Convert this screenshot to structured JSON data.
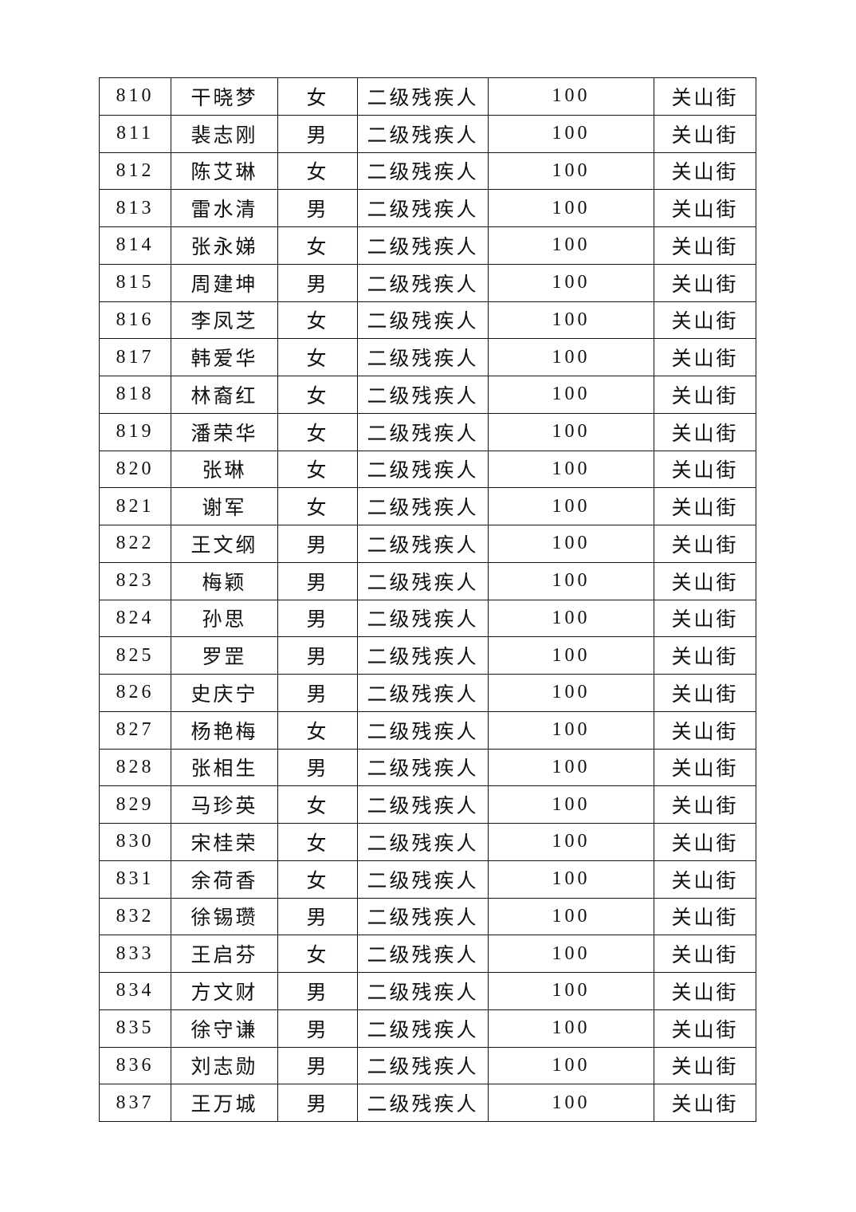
{
  "table": {
    "rows": [
      {
        "no": "810",
        "name": "干晓梦",
        "gender": "女",
        "level": "二级残疾人",
        "amount": "100",
        "street": "关山街"
      },
      {
        "no": "811",
        "name": "裴志刚",
        "gender": "男",
        "level": "二级残疾人",
        "amount": "100",
        "street": "关山街"
      },
      {
        "no": "812",
        "name": "陈艾琳",
        "gender": "女",
        "level": "二级残疾人",
        "amount": "100",
        "street": "关山街"
      },
      {
        "no": "813",
        "name": "雷水清",
        "gender": "男",
        "level": "二级残疾人",
        "amount": "100",
        "street": "关山街"
      },
      {
        "no": "814",
        "name": "张永娣",
        "gender": "女",
        "level": "二级残疾人",
        "amount": "100",
        "street": "关山街"
      },
      {
        "no": "815",
        "name": "周建坤",
        "gender": "男",
        "level": "二级残疾人",
        "amount": "100",
        "street": "关山街"
      },
      {
        "no": "816",
        "name": "李凤芝",
        "gender": "女",
        "level": "二级残疾人",
        "amount": "100",
        "street": "关山街"
      },
      {
        "no": "817",
        "name": "韩爱华",
        "gender": "女",
        "level": "二级残疾人",
        "amount": "100",
        "street": "关山街"
      },
      {
        "no": "818",
        "name": "林裔红",
        "gender": "女",
        "level": "二级残疾人",
        "amount": "100",
        "street": "关山街"
      },
      {
        "no": "819",
        "name": "潘荣华",
        "gender": "女",
        "level": "二级残疾人",
        "amount": "100",
        "street": "关山街"
      },
      {
        "no": "820",
        "name": "张琳",
        "gender": "女",
        "level": "二级残疾人",
        "amount": "100",
        "street": "关山街"
      },
      {
        "no": "821",
        "name": "谢军",
        "gender": "女",
        "level": "二级残疾人",
        "amount": "100",
        "street": "关山街"
      },
      {
        "no": "822",
        "name": "王文纲",
        "gender": "男",
        "level": "二级残疾人",
        "amount": "100",
        "street": "关山街"
      },
      {
        "no": "823",
        "name": "梅颖",
        "gender": "男",
        "level": "二级残疾人",
        "amount": "100",
        "street": "关山街"
      },
      {
        "no": "824",
        "name": "孙思",
        "gender": "男",
        "level": "二级残疾人",
        "amount": "100",
        "street": "关山街"
      },
      {
        "no": "825",
        "name": "罗罡",
        "gender": "男",
        "level": "二级残疾人",
        "amount": "100",
        "street": "关山街"
      },
      {
        "no": "826",
        "name": "史庆宁",
        "gender": "男",
        "level": "二级残疾人",
        "amount": "100",
        "street": "关山街"
      },
      {
        "no": "827",
        "name": "杨艳梅",
        "gender": "女",
        "level": "二级残疾人",
        "amount": "100",
        "street": "关山街"
      },
      {
        "no": "828",
        "name": "张相生",
        "gender": "男",
        "level": "二级残疾人",
        "amount": "100",
        "street": "关山街"
      },
      {
        "no": "829",
        "name": "马珍英",
        "gender": "女",
        "level": "二级残疾人",
        "amount": "100",
        "street": "关山街"
      },
      {
        "no": "830",
        "name": "宋桂荣",
        "gender": "女",
        "level": "二级残疾人",
        "amount": "100",
        "street": "关山街"
      },
      {
        "no": "831",
        "name": "余荷香",
        "gender": "女",
        "level": "二级残疾人",
        "amount": "100",
        "street": "关山街"
      },
      {
        "no": "832",
        "name": "徐锡瓒",
        "gender": "男",
        "level": "二级残疾人",
        "amount": "100",
        "street": "关山街"
      },
      {
        "no": "833",
        "name": "王启芬",
        "gender": "女",
        "level": "二级残疾人",
        "amount": "100",
        "street": "关山街"
      },
      {
        "no": "834",
        "name": "方文财",
        "gender": "男",
        "level": "二级残疾人",
        "amount": "100",
        "street": "关山街"
      },
      {
        "no": "835",
        "name": "徐守谦",
        "gender": "男",
        "level": "二级残疾人",
        "amount": "100",
        "street": "关山街"
      },
      {
        "no": "836",
        "name": "刘志勋",
        "gender": "男",
        "level": "二级残疾人",
        "amount": "100",
        "street": "关山街"
      },
      {
        "no": "837",
        "name": "王万城",
        "gender": "男",
        "level": "二级残疾人",
        "amount": "100",
        "street": "关山街"
      }
    ]
  }
}
